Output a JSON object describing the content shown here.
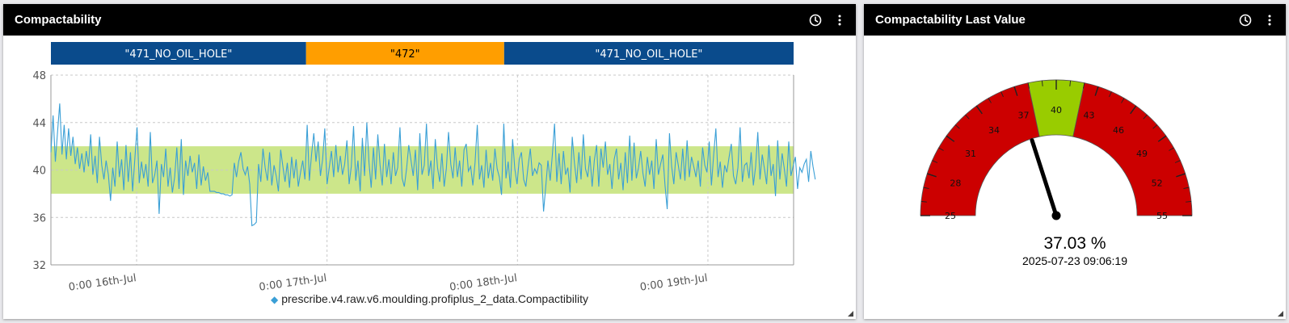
{
  "left_panel": {
    "title": "Compactability",
    "legend": "prescribe.v4.raw.v6.moulding.profiplus_2_data.Compactibility"
  },
  "right_panel": {
    "title": "Compactability Last Value",
    "value_display": "37.03 %",
    "timestamp": "2025-07-23 09:06:19"
  },
  "header_icons": [
    "clock-icon",
    "more-vertical-icon"
  ],
  "colors": {
    "header_bg": "#000000",
    "series_line": "#3a9fd6",
    "target_band": "#cce68a",
    "segment_blue": "#0a4b8c",
    "segment_orange": "#ff9e00",
    "gauge_red": "#cc0000",
    "gauge_green": "#99cc00"
  },
  "chart_data": [
    {
      "type": "line",
      "title": "",
      "xlabel": "",
      "ylabel": "",
      "ylim": [
        32,
        48
      ],
      "yticks": [
        "48",
        "44",
        "40",
        "36",
        "32"
      ],
      "xticks": [
        "0:00 16th-Jul",
        "0:00 17th-Jul",
        "0:00 18th-Jul",
        "0:00 19th-Jul"
      ],
      "x_range_days": [
        -0.45,
        3.45
      ],
      "target_band": [
        38,
        42
      ],
      "grid": true,
      "legend_position": "bottom-center",
      "segments": [
        {
          "label": "\"471_NO_OIL_HOLE\"",
          "start_day": -0.45,
          "end_day": 0.89,
          "color": "#0a4b8c"
        },
        {
          "label": "\"472\"",
          "start_day": 0.89,
          "end_day": 1.93,
          "color": "#ff9e00"
        },
        {
          "label": "\"471_NO_OIL_HOLE\"",
          "start_day": 1.93,
          "end_day": 3.45,
          "color": "#0a4b8c"
        }
      ],
      "series": [
        {
          "name": "prescribe.v4.raw.v6.moulding.profiplus_2_data.Compactibility",
          "x_start_day": -0.45,
          "x_step_day": 0.0116,
          "values": [
            41.5,
            44.6,
            40.7,
            43.2,
            45.6,
            41.3,
            43.8,
            40.9,
            43.5,
            41.2,
            42.8,
            40.5,
            41.9,
            40.1,
            41.4,
            39.8,
            41.6,
            40.3,
            43.0,
            39.6,
            41.2,
            38.9,
            42.8,
            40.4,
            39.2,
            40.8,
            39.6,
            37.4,
            40.2,
            38.6,
            42.4,
            39.4,
            40.9,
            38.3,
            42.1,
            39.0,
            41.5,
            38.2,
            41.0,
            43.6,
            38.9,
            40.7,
            39.3,
            40.5,
            38.6,
            43.2,
            38.9,
            39.6,
            40.8,
            36.3,
            40.5,
            39.4,
            41.8,
            38.6,
            40.2,
            38.1,
            39.4,
            41.9,
            38.4,
            42.6,
            37.9,
            40.8,
            39.5,
            41.2,
            39.8,
            40.6,
            38.4,
            41.3,
            38.7,
            40.3,
            39.1,
            39.8,
            38.2,
            38.2,
            38.2,
            38.1,
            38.1,
            38.0,
            38.0,
            37.9,
            37.9,
            37.8,
            37.9,
            40.6,
            39.4,
            40.7,
            41.5,
            40.1,
            39.6,
            40.3,
            38.8,
            35.3,
            35.4,
            35.6,
            40.5,
            39.0,
            41.8,
            40.2,
            39.1,
            41.5,
            38.7,
            40.4,
            39.5,
            38.2,
            41.7,
            40.3,
            39.0,
            40.6,
            38.5,
            41.1,
            39.3,
            40.9,
            38.6,
            39.8,
            40.8,
            39.2,
            43.8,
            39.1,
            41.3,
            43.1,
            40.7,
            42.4,
            39.5,
            40.9,
            43.5,
            38.8,
            40.2,
            41.6,
            39.4,
            42.1,
            39.8,
            41.2,
            39.6,
            40.5,
            42.5,
            38.8,
            40.3,
            43.7,
            39.1,
            40.8,
            38.2,
            42.7,
            39.5,
            44.0,
            40.6,
            38.5,
            41.9,
            39.2,
            43.0,
            40.4,
            38.7,
            42.2,
            39.4,
            40.9,
            38.8,
            41.5,
            39.5,
            40.2,
            43.6,
            39.3,
            38.6,
            40.1,
            42.1,
            40.8,
            39.5,
            41.7,
            38.3,
            43.1,
            39.6,
            40.4,
            43.9,
            39.5,
            40.8,
            38.4,
            42.6,
            40.2,
            39.0,
            41.4,
            38.6,
            40.1,
            43.2,
            40.5,
            39.3,
            41.9,
            39.4,
            40.8,
            38.6,
            41.7,
            42.2,
            39.9,
            40.3,
            38.7,
            40.6,
            43.8,
            39.2,
            40.4,
            38.5,
            41.7,
            39.3,
            40.6,
            39.1,
            41.8,
            40.1,
            39.4,
            37.9,
            43.9,
            39.3,
            40.7,
            38.5,
            42.6,
            40.1,
            38.8,
            40.9,
            41.5,
            39.2,
            38.6,
            40.3,
            41.8,
            39.5,
            40.1,
            39.7,
            40.6,
            40.4,
            36.5,
            38.6,
            40.8,
            39.1,
            41.3,
            43.9,
            39.0,
            41.4,
            38.8,
            41.6,
            39.6,
            40.2,
            38.1,
            42.8,
            40.6,
            38.9,
            41.5,
            39.2,
            43.0,
            40.1,
            39.4,
            41.2,
            38.6,
            40.8,
            42.1,
            38.6,
            41.8,
            40.2,
            42.4,
            39.6,
            40.5,
            38.4,
            40.9,
            41.8,
            39.2,
            40.6,
            38.3,
            41.5,
            38.9,
            42.9,
            39.1,
            42.3,
            39.3,
            40.2,
            41.6,
            39.7,
            38.6,
            41.1,
            39.6,
            40.8,
            38.4,
            42.6,
            39.6,
            40.5,
            41.3,
            38.7,
            36.7,
            43.1,
            40.3,
            38.8,
            41.5,
            40.4,
            39.2,
            41.8,
            39.1,
            42.5,
            39.4,
            41.1,
            40.3,
            39.4,
            40.8,
            38.6,
            41.9,
            40.4,
            39.8,
            42.4,
            38.7,
            41.2,
            43.5,
            39.4,
            40.7,
            38.5,
            40.4,
            39.8,
            41.1,
            42.2,
            39.5,
            38.8,
            40.2,
            43.6,
            39.0,
            40.4,
            40.6,
            39.3,
            41.5,
            38.7,
            40.3,
            43.2,
            39.2,
            41.3,
            40.1,
            38.8,
            42.1,
            39.5,
            40.5,
            37.8,
            42.5,
            39.2,
            41.4,
            40.1,
            38.6,
            42.4,
            39.5,
            40.3,
            41.1,
            38.4,
            40.2,
            39.8,
            40.5,
            40.9,
            39.0,
            41.6,
            40.3,
            39.2
          ]
        }
      ]
    },
    {
      "type": "gauge",
      "title": "",
      "min": 25,
      "max": 55,
      "value": 37.03,
      "unit": "%",
      "tick_labels": [
        "25",
        "28",
        "31",
        "34",
        "37",
        "40",
        "43",
        "46",
        "49",
        "52",
        "55"
      ],
      "bands": [
        {
          "from": 25,
          "to": 38,
          "color": "#cc0000"
        },
        {
          "from": 38,
          "to": 42,
          "color": "#99cc00"
        },
        {
          "from": 42,
          "to": 55,
          "color": "#cc0000"
        }
      ]
    }
  ]
}
